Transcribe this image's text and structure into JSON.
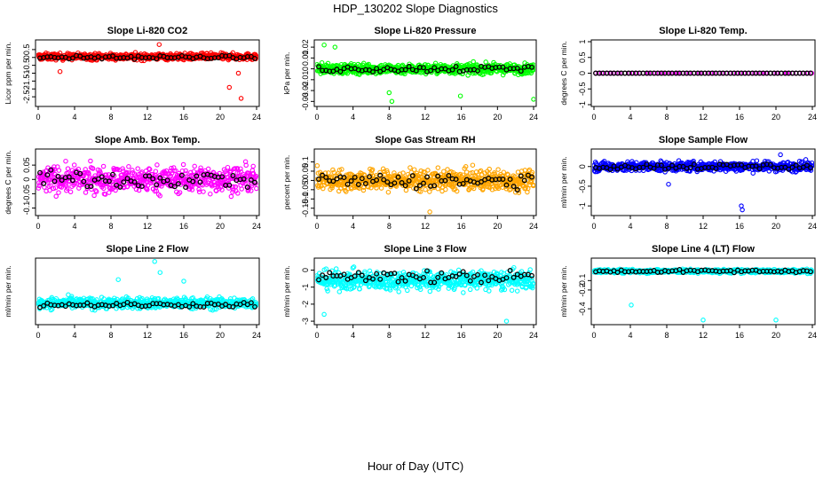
{
  "page": {
    "title": "HDP_130202  Slope Diagnostics",
    "xlabel": "Hour of Day (UTC)"
  },
  "chart_data": [
    {
      "type": "scatter",
      "title": "Slope Li-820 CO2",
      "ylabel": "Licor ppm per min.",
      "color": "#ff0000",
      "xlim": [
        0,
        24
      ],
      "ylim": [
        -3.0,
        1.0
      ],
      "xticks": [
        0,
        4,
        8,
        12,
        16,
        20,
        24
      ],
      "yticks": [
        -2.5,
        -2.0,
        -1.5,
        -1.0,
        -0.5,
        0.0,
        0.5
      ],
      "typical": {
        "center": 0.05,
        "spread": 0.2,
        "points_approx": 650
      },
      "outliers": [
        [
          2.4,
          -0.9
        ],
        [
          13.3,
          0.82
        ],
        [
          21.0,
          -1.9
        ],
        [
          22.3,
          -2.6
        ],
        [
          22.0,
          -1.0
        ]
      ],
      "hourly_black": {
        "center": 0.0,
        "spread": 0.1
      }
    },
    {
      "type": "scatter",
      "title": "Slope Li-820 Pressure",
      "ylabel": "kPa per min.",
      "color": "#00ff00",
      "xlim": [
        0,
        24
      ],
      "ylim": [
        -0.033,
        0.025
      ],
      "xticks": [
        0,
        4,
        8,
        12,
        16,
        20,
        24
      ],
      "yticks": [
        -0.03,
        -0.02,
        -0.01,
        0.0,
        0.01,
        0.02
      ],
      "typical": {
        "center": 0.0,
        "spread": 0.0045,
        "points_approx": 650
      },
      "outliers": [
        [
          0.8,
          0.022
        ],
        [
          2.0,
          0.02
        ],
        [
          8.0,
          -0.022
        ],
        [
          8.3,
          -0.03
        ],
        [
          15.9,
          -0.025
        ],
        [
          24.0,
          -0.028
        ]
      ],
      "hourly_black": {
        "center": 0.0,
        "spread": 0.003
      }
    },
    {
      "type": "scatter",
      "title": "Slope Li-820 Temp.",
      "ylabel": "degrees C per min.",
      "color": "#ff00ff",
      "xlim": [
        0,
        24
      ],
      "ylim": [
        -1.0,
        1.0
      ],
      "xticks": [
        0,
        4,
        8,
        12,
        16,
        20,
        24
      ],
      "yticks": [
        -1.0,
        -0.5,
        0.0,
        0.5,
        1.0
      ],
      "typical": {
        "center": 0.0,
        "spread": 0.0,
        "points_approx": 60
      },
      "outliers": [],
      "hourly_black": {
        "center": 0.0,
        "spread": 0.0
      }
    },
    {
      "type": "scatter",
      "title": "Slope Amb. Box Temp.",
      "ylabel": "degrees C per min.",
      "color": "#ff00ff",
      "xlim": [
        0,
        24
      ],
      "ylim": [
        -0.12,
        0.1
      ],
      "xticks": [
        0,
        4,
        8,
        12,
        16,
        20,
        24
      ],
      "yticks": [
        -0.1,
        -0.05,
        0.0,
        0.05
      ],
      "typical": {
        "center": 0.0,
        "spread": 0.045,
        "points_approx": 600
      },
      "outliers": [],
      "hourly_black": {
        "center": 0.0,
        "spread": 0.03
      }
    },
    {
      "type": "scatter",
      "title": "Slope Gas Stream RH",
      "ylabel": "percent per min.",
      "color": "#ffa500",
      "xlim": [
        0,
        24
      ],
      "ylim": [
        -0.18,
        0.16
      ],
      "xticks": [
        0,
        4,
        8,
        12,
        16,
        20,
        24
      ],
      "yticks": [
        -0.15,
        -0.1,
        -0.05,
        0.0,
        0.05,
        0.1
      ],
      "typical": {
        "center": 0.0,
        "spread": 0.055,
        "points_approx": 650
      },
      "outliers": [
        [
          12.5,
          -0.17
        ]
      ],
      "hourly_black": {
        "center": 0.0,
        "spread": 0.04
      }
    },
    {
      "type": "scatter",
      "title": "Slope Sample Flow",
      "ylabel": "ml/min per min.",
      "color": "#0000ff",
      "xlim": [
        0,
        24
      ],
      "ylim": [
        -1.2,
        0.4
      ],
      "xticks": [
        0,
        4,
        8,
        12,
        16,
        20,
        24
      ],
      "yticks": [
        -1.0,
        -0.5,
        0.0
      ],
      "typical": {
        "center": 0.0,
        "spread": 0.12,
        "points_approx": 600
      },
      "outliers": [
        [
          8.2,
          -0.45
        ],
        [
          16.2,
          -1.0
        ],
        [
          16.3,
          -1.1
        ],
        [
          20.5,
          0.3
        ]
      ],
      "hourly_black": {
        "center": 0.0,
        "spread": 0.08
      }
    },
    {
      "type": "scatter",
      "title": "Slope Line 2 Flow",
      "ylabel": "ml/min per min.",
      "color": "#00ffff",
      "xlim": [
        0,
        24
      ],
      "ylim": [
        -2.0,
        6.0
      ],
      "xticks": [
        0,
        4,
        8,
        12,
        16,
        20,
        24
      ],
      "yticks": [],
      "typical": {
        "center": 0.5,
        "spread": 0.7,
        "points_approx": 600
      },
      "outliers": [
        [
          8.8,
          3.5
        ],
        [
          12.8,
          5.8
        ],
        [
          13.4,
          4.4
        ],
        [
          16.0,
          3.3
        ]
      ],
      "hourly_black": {
        "center": 0.3,
        "spread": 0.3
      }
    },
    {
      "type": "scatter",
      "title": "Slope Line 3 Flow",
      "ylabel": "ml/min per min.",
      "color": "#00ffff",
      "xlim": [
        0,
        24
      ],
      "ylim": [
        -3.1,
        0.6
      ],
      "xticks": [
        0,
        4,
        8,
        12,
        16,
        20,
        24
      ],
      "yticks": [
        -3,
        -2,
        -1,
        0
      ],
      "typical": {
        "center": -0.6,
        "spread": 0.55,
        "points_approx": 600
      },
      "outliers": [
        [
          21.0,
          -3.0
        ],
        [
          0.8,
          -2.6
        ]
      ],
      "hourly_black": {
        "center": -0.4,
        "spread": 0.35
      }
    },
    {
      "type": "scatter",
      "title": "Slope Line 4 (LT) Flow",
      "ylabel": "ml/min per min.",
      "color": "#00ffff",
      "xlim": [
        0,
        24
      ],
      "ylim": [
        -0.55,
        0.12
      ],
      "xticks": [
        0,
        4,
        8,
        12,
        16,
        20,
        24
      ],
      "yticks": [
        -0.4,
        -0.2,
        -0.1
      ],
      "typical": {
        "center": 0.0,
        "spread": 0.02,
        "points_approx": 600
      },
      "outliers": [
        [
          4.1,
          -0.36
        ],
        [
          12.0,
          -0.52
        ],
        [
          20.0,
          -0.52
        ]
      ],
      "hourly_black": {
        "center": 0.0,
        "spread": 0.015
      }
    }
  ]
}
